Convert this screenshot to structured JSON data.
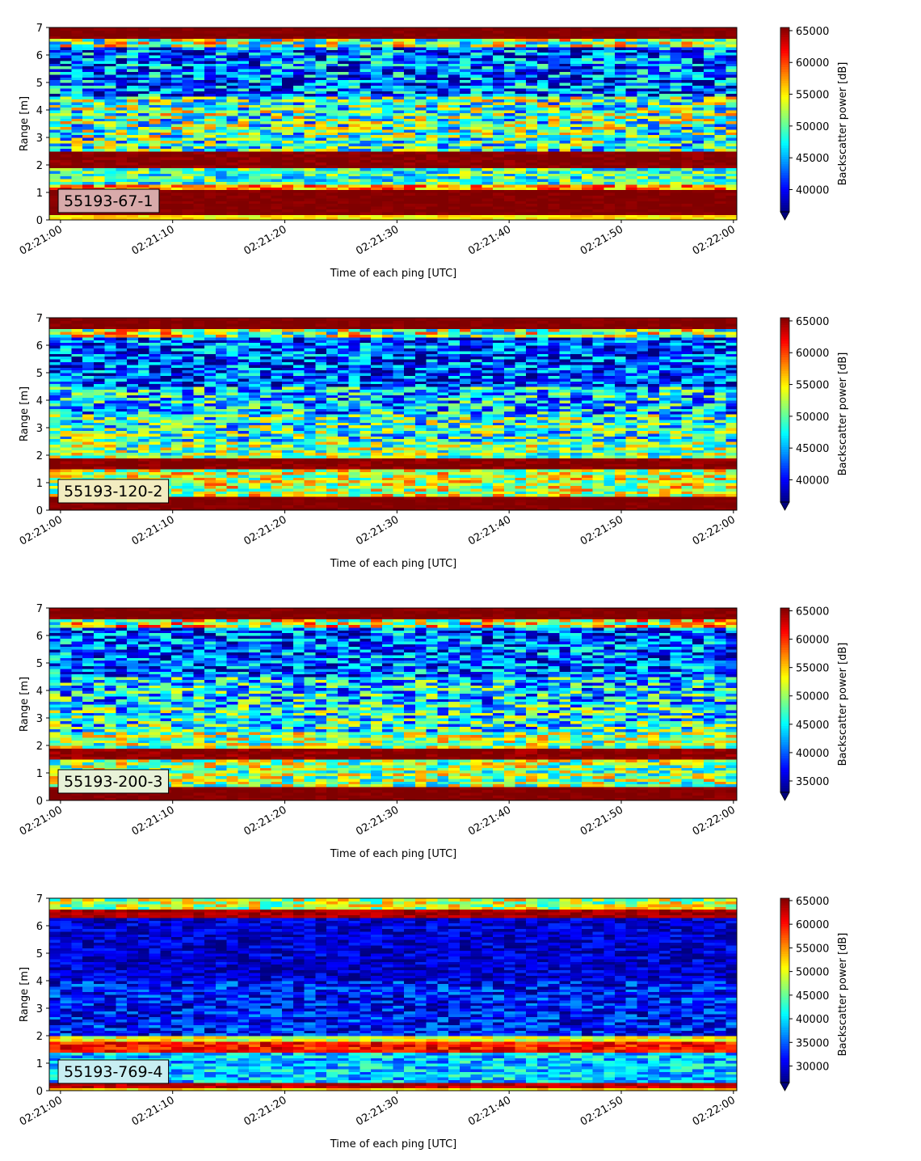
{
  "chart_data": [
    {
      "type": "heatmap",
      "label": "55193-67-1",
      "label_box_color": "#d8aaaa",
      "xlabel": "Time of each ping [UTC]",
      "ylabel": "Range [m]",
      "colorbar_label": "Backscatter power [dB]",
      "x_ticks": [
        "02:21:00",
        "02:21:10",
        "02:21:20",
        "02:21:30",
        "02:21:40",
        "02:21:50",
        "02:22:00"
      ],
      "y_ticks": [
        0,
        1,
        2,
        3,
        4,
        5,
        6,
        7
      ],
      "xlim_seconds": [
        -1,
        60.3
      ],
      "ylim": [
        0,
        7
      ],
      "clim": [
        36500,
        65500
      ],
      "colorbar_ticks": [
        40000,
        45000,
        50000,
        55000,
        60000,
        65000
      ],
      "bands": [
        {
          "range": [
            0.0,
            0.2
          ],
          "value": 55000,
          "jitter": 2000
        },
        {
          "range": [
            0.2,
            1.1
          ],
          "value": 65500,
          "jitter": 800
        },
        {
          "range": [
            1.1,
            1.3
          ],
          "value": 58000,
          "jitter": 5000
        },
        {
          "range": [
            1.3,
            1.9
          ],
          "value": 49000,
          "jitter": 6000
        },
        {
          "range": [
            1.9,
            2.5
          ],
          "value": 65500,
          "jitter": 1200
        },
        {
          "range": [
            2.5,
            3.0
          ],
          "value": 49000,
          "jitter": 8000
        },
        {
          "range": [
            3.0,
            4.5
          ],
          "value": 50000,
          "jitter": 9000
        },
        {
          "range": [
            4.5,
            6.3
          ],
          "value": 43000,
          "jitter": 8000
        },
        {
          "range": [
            6.3,
            6.6
          ],
          "value": 52000,
          "jitter": 9000
        },
        {
          "range": [
            6.6,
            7.0
          ],
          "value": 65500,
          "jitter": 800
        }
      ]
    },
    {
      "type": "heatmap",
      "label": "55193-120-2",
      "label_box_color": "#f2ecc0",
      "xlabel": "Time of each ping [UTC]",
      "ylabel": "Range [m]",
      "colorbar_label": "Backscatter power [dB]",
      "x_ticks": [
        "02:21:00",
        "02:21:10",
        "02:21:20",
        "02:21:30",
        "02:21:40",
        "02:21:50",
        "02:22:00"
      ],
      "y_ticks": [
        0,
        1,
        2,
        3,
        4,
        5,
        6,
        7
      ],
      "xlim_seconds": [
        -1,
        60.3
      ],
      "ylim": [
        0,
        7
      ],
      "clim": [
        36500,
        65500
      ],
      "colorbar_ticks": [
        40000,
        45000,
        50000,
        55000,
        60000,
        65000
      ],
      "bands": [
        {
          "range": [
            0.0,
            0.5
          ],
          "value": 65500,
          "jitter": 800
        },
        {
          "range": [
            0.5,
            1.5
          ],
          "value": 53000,
          "jitter": 7000
        },
        {
          "range": [
            1.5,
            1.9
          ],
          "value": 65500,
          "jitter": 1500
        },
        {
          "range": [
            1.9,
            2.5
          ],
          "value": 51000,
          "jitter": 7000
        },
        {
          "range": [
            2.5,
            3.5
          ],
          "value": 49000,
          "jitter": 8000
        },
        {
          "range": [
            3.5,
            4.5
          ],
          "value": 46000,
          "jitter": 8000
        },
        {
          "range": [
            4.5,
            6.3
          ],
          "value": 42000,
          "jitter": 7000
        },
        {
          "range": [
            6.3,
            6.6
          ],
          "value": 52000,
          "jitter": 9000
        },
        {
          "range": [
            6.6,
            7.0
          ],
          "value": 65500,
          "jitter": 800
        }
      ]
    },
    {
      "type": "heatmap",
      "label": "55193-200-3",
      "label_box_color": "#e8f2d8",
      "xlabel": "Time of each ping [UTC]",
      "ylabel": "Range [m]",
      "colorbar_label": "Backscatter power [dB]",
      "x_ticks": [
        "02:21:00",
        "02:21:10",
        "02:21:20",
        "02:21:30",
        "02:21:40",
        "02:21:50",
        "02:22:00"
      ],
      "y_ticks": [
        0,
        1,
        2,
        3,
        4,
        5,
        6,
        7
      ],
      "xlim_seconds": [
        -1,
        60.3
      ],
      "ylim": [
        0,
        7
      ],
      "clim": [
        33000,
        65500
      ],
      "colorbar_ticks": [
        35000,
        40000,
        45000,
        50000,
        55000,
        60000,
        65000
      ],
      "bands": [
        {
          "range": [
            0.0,
            0.5
          ],
          "value": 65500,
          "jitter": 1000
        },
        {
          "range": [
            0.5,
            1.5
          ],
          "value": 50000,
          "jitter": 8000
        },
        {
          "range": [
            1.5,
            1.9
          ],
          "value": 65500,
          "jitter": 2000
        },
        {
          "range": [
            1.9,
            2.5
          ],
          "value": 50000,
          "jitter": 8000
        },
        {
          "range": [
            2.5,
            3.5
          ],
          "value": 46000,
          "jitter": 9000
        },
        {
          "range": [
            3.5,
            4.5
          ],
          "value": 44000,
          "jitter": 9000
        },
        {
          "range": [
            4.5,
            6.3
          ],
          "value": 40000,
          "jitter": 8000
        },
        {
          "range": [
            6.3,
            6.6
          ],
          "value": 52000,
          "jitter": 10000
        },
        {
          "range": [
            6.6,
            7.0
          ],
          "value": 65500,
          "jitter": 1000
        }
      ]
    },
    {
      "type": "heatmap",
      "label": "55193-769-4",
      "label_box_color": "#c8eef2",
      "xlabel": "Time of each ping [UTC]",
      "ylabel": "Range [m]",
      "colorbar_label": "Backscatter power [dB]",
      "x_ticks": [
        "02:21:00",
        "02:21:10",
        "02:21:20",
        "02:21:30",
        "02:21:40",
        "02:21:50",
        "02:22:00"
      ],
      "y_ticks": [
        0,
        1,
        2,
        3,
        4,
        5,
        6,
        7
      ],
      "xlim_seconds": [
        -1,
        60.3
      ],
      "ylim": [
        0,
        7
      ],
      "clim": [
        26500,
        65500
      ],
      "colorbar_ticks": [
        30000,
        35000,
        40000,
        45000,
        50000,
        55000,
        60000,
        65000
      ],
      "bands": [
        {
          "range": [
            0.0,
            0.15
          ],
          "value": 52000,
          "jitter": 3000
        },
        {
          "range": [
            0.15,
            0.3
          ],
          "value": 63000,
          "jitter": 2000
        },
        {
          "range": [
            0.3,
            1.4
          ],
          "value": 39000,
          "jitter": 6000
        },
        {
          "range": [
            1.4,
            1.8
          ],
          "value": 60000,
          "jitter": 4000
        },
        {
          "range": [
            1.8,
            2.0
          ],
          "value": 50000,
          "jitter": 5000
        },
        {
          "range": [
            2.0,
            4.0
          ],
          "value": 32000,
          "jitter": 6000
        },
        {
          "range": [
            4.0,
            6.3
          ],
          "value": 29500,
          "jitter": 4000
        },
        {
          "range": [
            6.3,
            6.6
          ],
          "value": 64000,
          "jitter": 2000
        },
        {
          "range": [
            6.6,
            7.0
          ],
          "value": 48000,
          "jitter": 8000
        }
      ]
    }
  ]
}
